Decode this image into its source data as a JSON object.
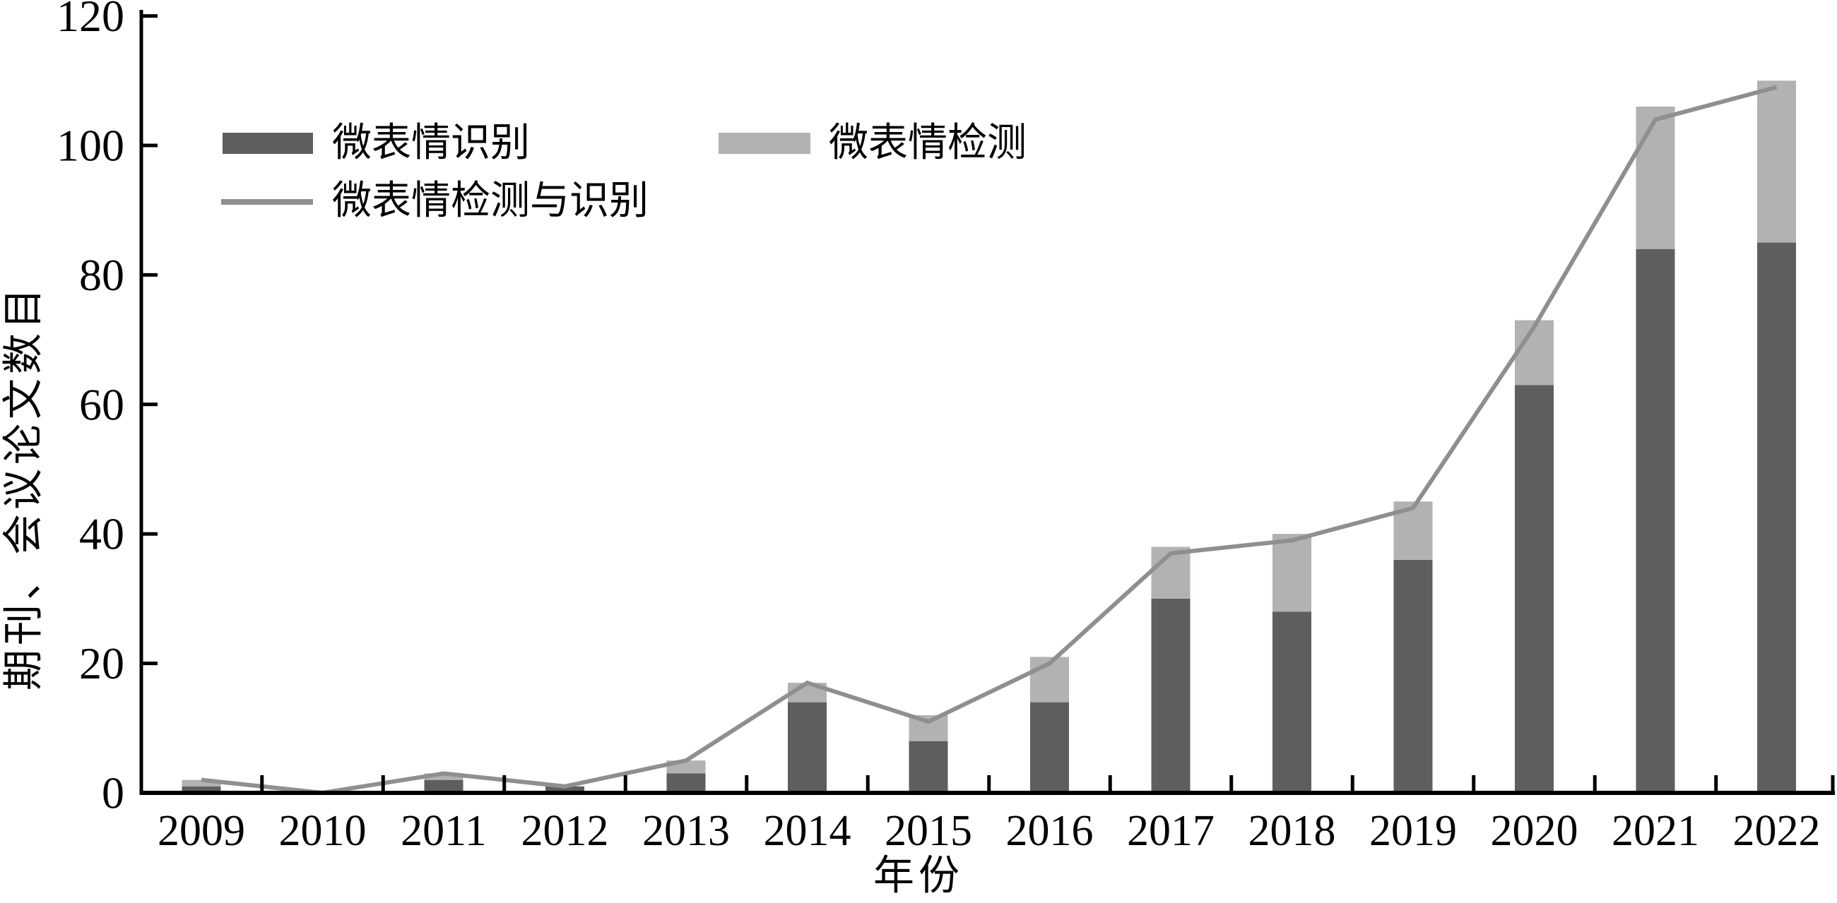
{
  "figure": {
    "background": "#ffffff",
    "axis_color": "#000000"
  },
  "chart_data": {
    "type": "bar",
    "subtype": "stacked-bar-with-line",
    "title": "",
    "xlabel": "年份",
    "ylabel": "期刊、会议论文数目",
    "categories": [
      "2009",
      "2010",
      "2011",
      "2012",
      "2013",
      "2014",
      "2015",
      "2016",
      "2017",
      "2018",
      "2019",
      "2020",
      "2021",
      "2022"
    ],
    "series": [
      {
        "name": "微表情识别",
        "type": "bar",
        "stack": "total",
        "color": "#5f5d60",
        "values": [
          1,
          0,
          2,
          1,
          3,
          14,
          8,
          14,
          30,
          28,
          36,
          63,
          84,
          85
        ]
      },
      {
        "name": "微表情检测",
        "type": "bar",
        "stack": "total",
        "color": "#b3b1b4",
        "values": [
          1,
          0,
          1,
          0,
          2,
          3,
          4,
          7,
          8,
          12,
          9,
          10,
          22,
          25
        ]
      },
      {
        "name": "微表情检测与识别",
        "type": "line",
        "color": "#908e91",
        "values": [
          2,
          0,
          3,
          1,
          5,
          17,
          11,
          20,
          37,
          39,
          44,
          72,
          104,
          109
        ]
      }
    ],
    "ylim": [
      0,
      120
    ],
    "yticks": [
      "0",
      "20",
      "40",
      "60",
      "80",
      "100",
      "120"
    ],
    "grid": false,
    "legend_position": "upper-left-inside",
    "legend": {
      "recognition_label": "微表情识别",
      "detection_label": "微表情检测",
      "both_label": "微表情检测与识别"
    }
  }
}
